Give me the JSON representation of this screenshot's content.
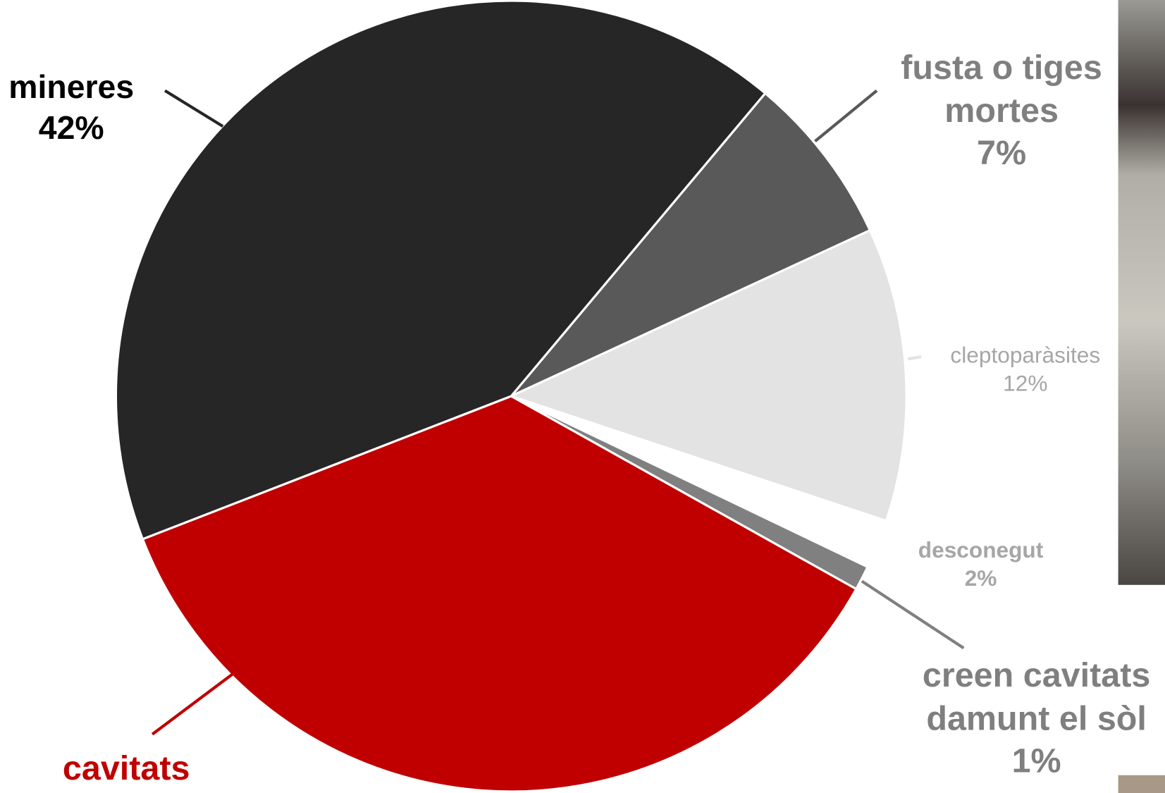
{
  "chart_data": {
    "type": "pie",
    "categories": [
      "fusta o tiges mortes",
      "cleptoparàsites",
      "desconegut",
      "creen cavitats damunt el sòl",
      "cavitats",
      "mineres"
    ],
    "values": [
      7,
      12,
      2,
      1,
      36,
      42
    ],
    "value_labels": [
      "7%",
      "12%",
      "2%",
      "1%",
      null,
      "42%"
    ],
    "colors": [
      "#595959",
      "#e3e3e3",
      "#ffffff",
      "#808080",
      "#c00000",
      "#262626"
    ],
    "label_colors": [
      "#7f7f7f",
      "#a6a6a6",
      "#a6a6a6",
      "#7f7f7f",
      "#c00000",
      "#000000"
    ],
    "start_angle": 40
  }
}
